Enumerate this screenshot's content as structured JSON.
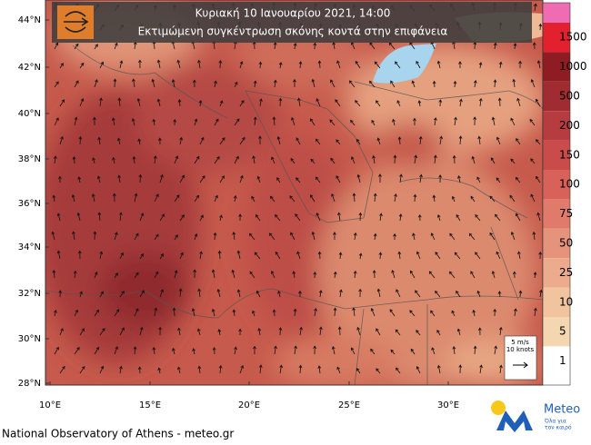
{
  "header": {
    "title": "Κυριακή 10 Ιανουαρίου 2021, 14:00",
    "subtitle": "Εκτιμώμενη συγκέντρωση σκόνης κοντά στην επιφάνεια"
  },
  "map": {
    "lat_labels": [
      "44°N",
      "42°N",
      "40°N",
      "38°N",
      "36°N",
      "34°N",
      "32°N",
      "30°N",
      "28°N"
    ],
    "lon_labels": [
      "10°E",
      "15°E",
      "20°E",
      "25°E",
      "30°E"
    ]
  },
  "colorbar": {
    "levels": [
      1500,
      1000,
      500,
      200,
      150,
      100,
      75,
      50,
      25,
      10,
      5,
      1
    ],
    "colors": [
      "#f06cb2",
      "#e3202e",
      "#8e1c22",
      "#a02c31",
      "#b63c40",
      "#c94c4a",
      "#d8625a",
      "#e07a6b",
      "#e6937c",
      "#ecab8d",
      "#f1c39f",
      "#f4d7b0",
      "#ffffff"
    ]
  },
  "wind_legend": {
    "speed": "5 m/s",
    "knots": "10 knots"
  },
  "footer": "National Observatory of Athens - meteo.gr",
  "logo": {
    "name": "Meteo",
    "tagline": [
      "Όλα για",
      "τον καιρό"
    ]
  }
}
